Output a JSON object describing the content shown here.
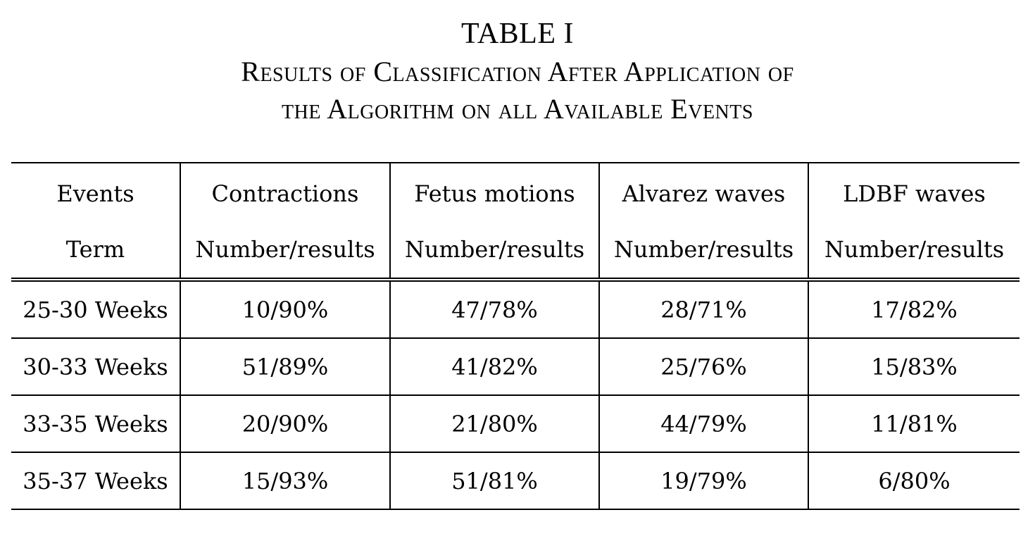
{
  "caption": {
    "table_number": "TABLE I",
    "title_line1": "Results of Classification After Application of",
    "title_line2": "the Algorithm on all Available Events"
  },
  "table": {
    "header_row1": [
      "Events",
      "Contractions",
      "Fetus motions",
      "Alvarez waves",
      "LDBF waves"
    ],
    "header_row2": [
      "Term",
      "Number/results",
      "Number/results",
      "Number/results",
      "Number/results"
    ],
    "rows": [
      [
        "25-30 Weeks",
        "10/90%",
        "47/78%",
        "28/71%",
        "17/82%"
      ],
      [
        "30-33 Weeks",
        "51/89%",
        "41/82%",
        "25/76%",
        "15/83%"
      ],
      [
        "33-35 Weeks",
        "20/90%",
        "21/80%",
        "44/79%",
        "11/81%"
      ],
      [
        "35-37 Weeks",
        "15/93%",
        "51/81%",
        "19/79%",
        "6/80%"
      ]
    ]
  }
}
